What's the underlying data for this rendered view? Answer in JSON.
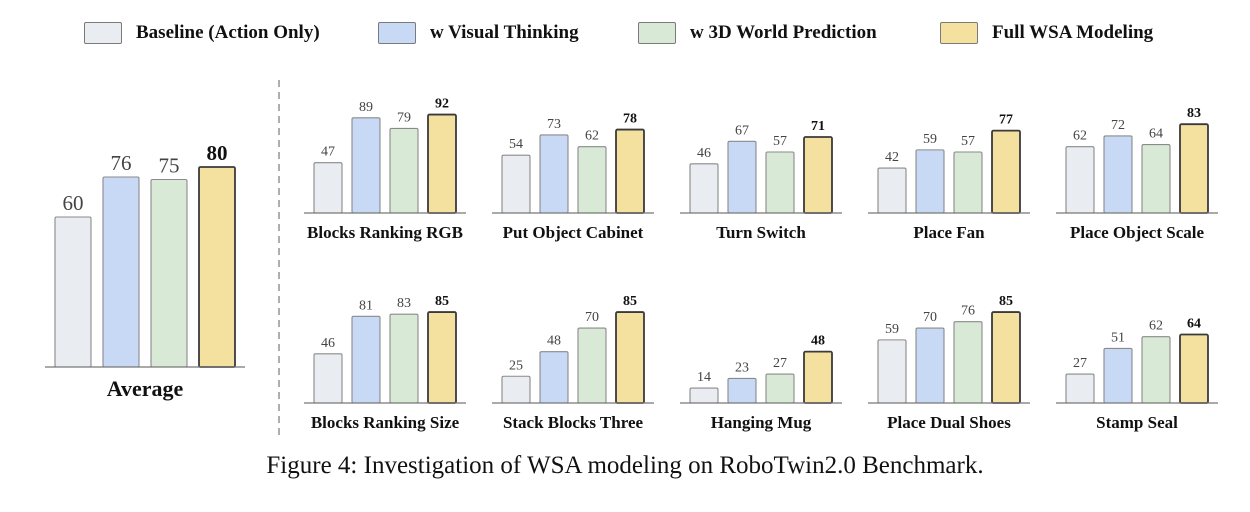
{
  "legend": {
    "items": [
      {
        "label": "Baseline (Action Only)",
        "color": "#e9ecf0"
      },
      {
        "label": "w Visual Thinking",
        "color": "#c7d9f5"
      },
      {
        "label": "w 3D World Prediction",
        "color": "#d8ead6"
      },
      {
        "label": "Full WSA Modeling",
        "color": "#f4e09f"
      }
    ]
  },
  "caption": "Figure 4: Investigation of WSA modeling on RoboTwin2.0 Benchmark.",
  "chart_data": [
    {
      "type": "bar",
      "title": "Average",
      "values": [
        60,
        76,
        75,
        80
      ],
      "highlight_index": 3
    },
    {
      "type": "bar",
      "title": "Blocks Ranking RGB",
      "values": [
        47,
        89,
        79,
        92
      ],
      "highlight_index": 3
    },
    {
      "type": "bar",
      "title": "Put Object Cabinet",
      "values": [
        54,
        73,
        62,
        78
      ],
      "highlight_index": 3
    },
    {
      "type": "bar",
      "title": "Turn Switch",
      "values": [
        46,
        67,
        57,
        71
      ],
      "highlight_index": 3
    },
    {
      "type": "bar",
      "title": "Place Fan",
      "values": [
        42,
        59,
        57,
        77
      ],
      "highlight_index": 3
    },
    {
      "type": "bar",
      "title": "Place Object Scale",
      "values": [
        62,
        72,
        64,
        83
      ],
      "highlight_index": 3
    },
    {
      "type": "bar",
      "title": "Blocks Ranking Size",
      "values": [
        46,
        81,
        83,
        85
      ],
      "highlight_index": 3
    },
    {
      "type": "bar",
      "title": "Stack Blocks Three",
      "values": [
        25,
        48,
        70,
        85
      ],
      "highlight_index": 3
    },
    {
      "type": "bar",
      "title": "Hanging Mug",
      "values": [
        14,
        23,
        27,
        48
      ],
      "highlight_index": 3
    },
    {
      "type": "bar",
      "title": "Place Dual Shoes",
      "values": [
        59,
        70,
        76,
        85
      ],
      "highlight_index": 3
    },
    {
      "type": "bar",
      "title": "Stamp Seal",
      "values": [
        27,
        51,
        62,
        64
      ],
      "highlight_index": 3
    }
  ]
}
